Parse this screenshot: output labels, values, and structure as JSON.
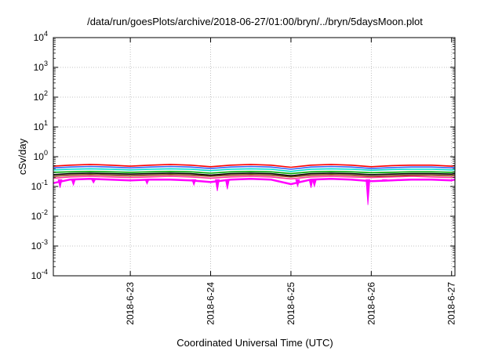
{
  "chart_data": {
    "type": "line",
    "title": "/data/run/goesPlots/archive/2018-06-27/01:00/bryn/../bryn/5daysMoon.plot",
    "xlabel": "Coordinated Universal Time (UTC)",
    "ylabel": "cSv/day",
    "yscale": "log",
    "ylim": [
      0.0001,
      10000
    ],
    "xlim": [
      "2018-06-22T01:00",
      "2018-06-27T01:00"
    ],
    "grid": true,
    "legend": "none",
    "y_ticks": [
      {
        "base": "10",
        "exp": "-4",
        "value": 0.0001
      },
      {
        "base": "10",
        "exp": "-3",
        "value": 0.001
      },
      {
        "base": "10",
        "exp": "-2",
        "value": 0.01
      },
      {
        "base": "10",
        "exp": "-1",
        "value": 0.1
      },
      {
        "base": "10",
        "exp": "0",
        "value": 1
      },
      {
        "base": "10",
        "exp": "1",
        "value": 10
      },
      {
        "base": "10",
        "exp": "2",
        "value": 100
      },
      {
        "base": "10",
        "exp": "3",
        "value": 1000
      },
      {
        "base": "10",
        "exp": "4",
        "value": 10000
      }
    ],
    "x_ticks": [
      {
        "label": "2018-6-23",
        "date": "2018-06-23T00:00"
      },
      {
        "label": "2018-6-24",
        "date": "2018-06-24T00:00"
      },
      {
        "label": "2018-6-25",
        "date": "2018-06-25T00:00"
      },
      {
        "label": "2018-6-26",
        "date": "2018-06-26T00:00"
      },
      {
        "label": "2018-6-27",
        "date": "2018-06-27T00:00"
      }
    ],
    "x": [
      "2018-06-22T01:00",
      "2018-06-22T06:00",
      "2018-06-22T12:00",
      "2018-06-22T18:00",
      "2018-06-23T00:00",
      "2018-06-23T06:00",
      "2018-06-23T12:00",
      "2018-06-23T18:00",
      "2018-06-24T00:00",
      "2018-06-24T06:00",
      "2018-06-24T12:00",
      "2018-06-24T18:00",
      "2018-06-25T00:00",
      "2018-06-25T06:00",
      "2018-06-25T12:00",
      "2018-06-25T18:00",
      "2018-06-26T00:00",
      "2018-06-26T06:00",
      "2018-06-26T12:00",
      "2018-06-26T18:00",
      "2018-06-27T00:00",
      "2018-06-27T01:00"
    ],
    "series": [
      {
        "color": "#ff00ff",
        "values": [
          0.13,
          0.17,
          0.18,
          0.17,
          0.16,
          0.17,
          0.17,
          0.16,
          0.14,
          0.17,
          0.18,
          0.17,
          0.12,
          0.17,
          0.18,
          0.17,
          0.15,
          0.16,
          0.17,
          0.17,
          0.16,
          0.17
        ]
      },
      {
        "color": "#ff3399",
        "values": [
          0.19,
          0.21,
          0.22,
          0.21,
          0.2,
          0.21,
          0.22,
          0.21,
          0.19,
          0.21,
          0.22,
          0.21,
          0.18,
          0.21,
          0.22,
          0.21,
          0.2,
          0.21,
          0.22,
          0.21,
          0.2,
          0.21
        ]
      },
      {
        "color": "#8b4513",
        "values": [
          0.22,
          0.24,
          0.25,
          0.24,
          0.23,
          0.24,
          0.25,
          0.24,
          0.22,
          0.24,
          0.25,
          0.24,
          0.21,
          0.24,
          0.25,
          0.24,
          0.22,
          0.23,
          0.24,
          0.24,
          0.23,
          0.24
        ]
      },
      {
        "color": "#000000",
        "values": [
          0.25,
          0.27,
          0.28,
          0.27,
          0.26,
          0.27,
          0.28,
          0.27,
          0.24,
          0.27,
          0.28,
          0.27,
          0.23,
          0.27,
          0.28,
          0.27,
          0.25,
          0.26,
          0.27,
          0.27,
          0.26,
          0.27
        ]
      },
      {
        "color": "#00aa00",
        "values": [
          0.3,
          0.31,
          0.32,
          0.31,
          0.3,
          0.31,
          0.32,
          0.31,
          0.28,
          0.31,
          0.32,
          0.31,
          0.27,
          0.31,
          0.32,
          0.31,
          0.29,
          0.3,
          0.31,
          0.31,
          0.3,
          0.31
        ]
      },
      {
        "color": "#00ddcc",
        "values": [
          0.36,
          0.38,
          0.39,
          0.38,
          0.36,
          0.38,
          0.39,
          0.38,
          0.34,
          0.38,
          0.39,
          0.38,
          0.32,
          0.38,
          0.39,
          0.38,
          0.35,
          0.37,
          0.38,
          0.38,
          0.36,
          0.37
        ]
      },
      {
        "color": "#3366ff",
        "values": [
          0.42,
          0.45,
          0.47,
          0.45,
          0.42,
          0.45,
          0.47,
          0.45,
          0.4,
          0.45,
          0.47,
          0.45,
          0.38,
          0.45,
          0.47,
          0.45,
          0.4,
          0.43,
          0.45,
          0.45,
          0.42,
          0.44
        ]
      },
      {
        "color": "#ff0000",
        "values": [
          0.48,
          0.52,
          0.55,
          0.52,
          0.48,
          0.52,
          0.55,
          0.52,
          0.46,
          0.52,
          0.55,
          0.52,
          0.44,
          0.52,
          0.55,
          0.52,
          0.46,
          0.5,
          0.52,
          0.52,
          0.48,
          0.5
        ]
      }
    ],
    "dips": [
      {
        "date": "2018-06-22T03:00",
        "value": 0.09
      },
      {
        "date": "2018-06-22T07:00",
        "value": 0.11
      },
      {
        "date": "2018-06-22T13:00",
        "value": 0.13
      },
      {
        "date": "2018-06-23T05:00",
        "value": 0.12
      },
      {
        "date": "2018-06-23T19:00",
        "value": 0.11
      },
      {
        "date": "2018-06-24T02:00",
        "value": 0.07
      },
      {
        "date": "2018-06-24T05:00",
        "value": 0.08
      },
      {
        "date": "2018-06-25T02:00",
        "value": 0.1
      },
      {
        "date": "2018-06-25T06:00",
        "value": 0.09
      },
      {
        "date": "2018-06-25T07:00",
        "value": 0.1
      },
      {
        "date": "2018-06-25T23:00",
        "value": 0.024
      },
      {
        "date": "2018-06-26T04:00",
        "value": 0.15
      },
      {
        "date": "2018-06-26T20:00",
        "value": 0.16
      }
    ]
  }
}
